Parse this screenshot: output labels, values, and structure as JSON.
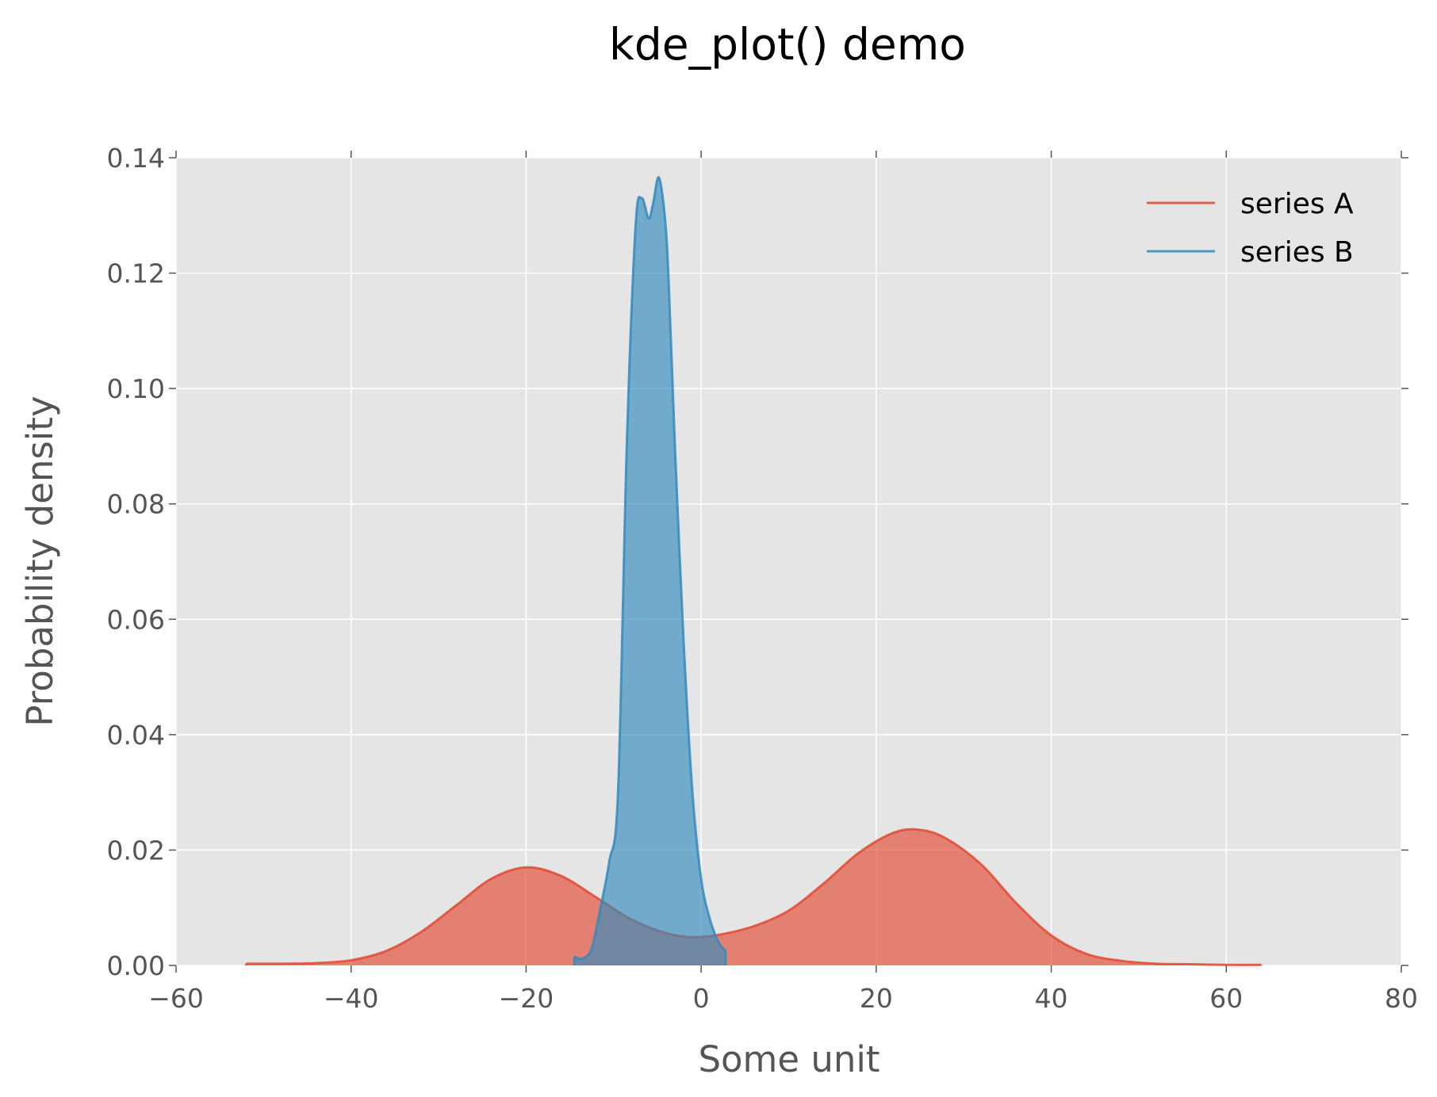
{
  "chart_data": {
    "type": "area",
    "title": "kde_plot() demo",
    "xlabel": "Some unit",
    "ylabel": "Probability density",
    "xlim": [
      -60,
      80
    ],
    "ylim": [
      0,
      0.14
    ],
    "xticks": [
      -60,
      -40,
      -20,
      0,
      20,
      40,
      60,
      80
    ],
    "xtick_labels": [
      "−60",
      "−40",
      "−20",
      "0",
      "20",
      "40",
      "60",
      "80"
    ],
    "yticks": [
      0,
      0.02,
      0.04,
      0.06,
      0.08,
      0.1,
      0.12,
      0.14
    ],
    "ytick_labels": [
      "0.00",
      "0.02",
      "0.04",
      "0.06",
      "0.08",
      "0.10",
      "0.12",
      "0.14"
    ],
    "grid": true,
    "legend_position": "top-right",
    "background": "#e5e5e5",
    "series": [
      {
        "name": "series A",
        "color": "#e24a33",
        "x": [
          -52,
          -48,
          -44,
          -40,
          -36,
          -32,
          -28,
          -24,
          -20,
          -16,
          -12,
          -8,
          -4,
          -1,
          2,
          6,
          10,
          14,
          18,
          22,
          25,
          28,
          32,
          36,
          40,
          44,
          48,
          52,
          56,
          60,
          64
        ],
        "y": [
          0.0003,
          0.0003,
          0.0004,
          0.0009,
          0.0025,
          0.0058,
          0.0104,
          0.015,
          0.017,
          0.0155,
          0.0118,
          0.008,
          0.0056,
          0.0049,
          0.0053,
          0.0068,
          0.0095,
          0.0142,
          0.0195,
          0.023,
          0.0235,
          0.022,
          0.0175,
          0.0108,
          0.0052,
          0.002,
          0.0008,
          0.0003,
          0.0002,
          0.0001,
          0.0001
        ]
      },
      {
        "name": "series B",
        "color": "#348abd",
        "x": [
          -14.5,
          -13.5,
          -12.5,
          -11.5,
          -10.5,
          -9.5,
          -8.5,
          -7.5,
          -6.8,
          -6.0,
          -5.5,
          -4.8,
          -4.0,
          -3.5,
          -3.0,
          -2.0,
          -1.0,
          0,
          1.0,
          2.0,
          2.8
        ],
        "y": [
          0.0015,
          0.0012,
          0.003,
          0.01,
          0.018,
          0.03,
          0.09,
          0.128,
          0.133,
          0.1295,
          0.132,
          0.1365,
          0.127,
          0.11,
          0.09,
          0.056,
          0.03,
          0.015,
          0.008,
          0.004,
          0.0025
        ]
      }
    ]
  }
}
